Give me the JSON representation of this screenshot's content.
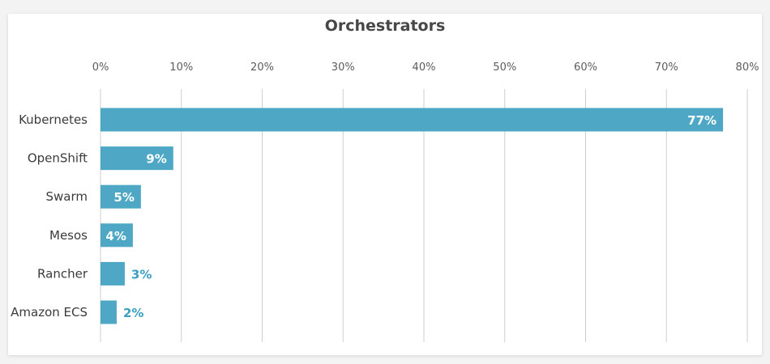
{
  "chart_data": {
    "type": "bar",
    "orientation": "horizontal",
    "title": "Orchestrators",
    "categories": [
      "Kubernetes",
      "OpenShift",
      "Swarm",
      "Mesos",
      "Rancher",
      "Amazon ECS"
    ],
    "values": [
      77,
      9,
      5,
      4,
      3,
      2
    ],
    "value_labels": [
      "77%",
      "9%",
      "5%",
      "4%",
      "3%",
      "2%"
    ],
    "xlim": [
      0,
      80
    ],
    "x_ticks": [
      "0%",
      "10%",
      "20%",
      "30%",
      "40%",
      "50%",
      "60%",
      "70%",
      "80%"
    ],
    "xlabel": "",
    "ylabel": "",
    "grid": true,
    "colors": {
      "bar": "#4ea7c4",
      "label_inside": "#ffffff",
      "label_outside": "#3a9fc0",
      "grid": "#cfcfcf"
    }
  }
}
